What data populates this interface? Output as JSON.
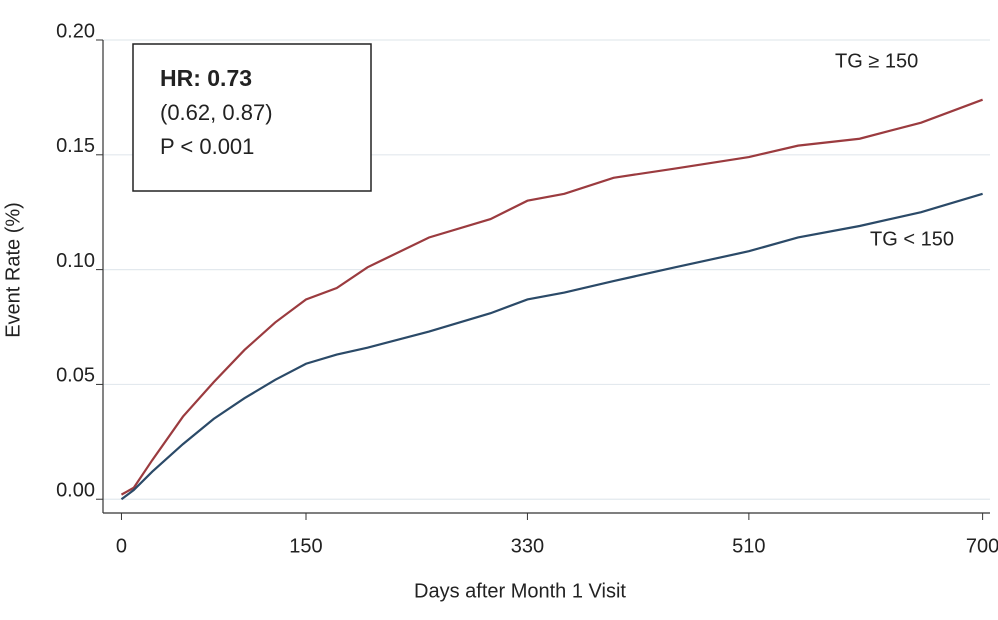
{
  "chart_data": {
    "type": "line",
    "x_label": "Days after Month 1 Visit",
    "y_label": "Event Rate (%)",
    "annotation_box": [
      "HR: 0.73",
      "(0.62, 0.87)",
      "P < 0.001"
    ],
    "x": [
      0,
      10,
      25,
      50,
      75,
      100,
      125,
      150,
      175,
      200,
      250,
      300,
      330,
      360,
      400,
      450,
      510,
      550,
      600,
      650,
      700
    ],
    "series": [
      {
        "name": "TG ≥ 150",
        "color": "#9b3b3f",
        "values": [
          0.002,
          0.005,
          0.017,
          0.036,
          0.051,
          0.065,
          0.077,
          0.087,
          0.092,
          0.101,
          0.114,
          0.122,
          0.13,
          0.133,
          0.14,
          0.144,
          0.149,
          0.154,
          0.157,
          0.164,
          0.174
        ]
      },
      {
        "name": "TG < 150",
        "color": "#2b4a68",
        "values": [
          0.0,
          0.004,
          0.012,
          0.024,
          0.035,
          0.044,
          0.052,
          0.059,
          0.063,
          0.066,
          0.073,
          0.081,
          0.087,
          0.09,
          0.095,
          0.101,
          0.108,
          0.114,
          0.119,
          0.125,
          0.133
        ]
      }
    ],
    "xlim": [
      -15,
      706
    ],
    "ylim": [
      -0.006,
      0.2
    ],
    "xticks": [
      0,
      150,
      330,
      510,
      700
    ],
    "yticks": [
      {
        "value": 0,
        "label": "0.00"
      },
      0.05,
      {
        "value": 0.1,
        "label": "0.10"
      },
      0.15,
      {
        "value": 0.2,
        "label": "0.20"
      }
    ],
    "grid": true
  }
}
